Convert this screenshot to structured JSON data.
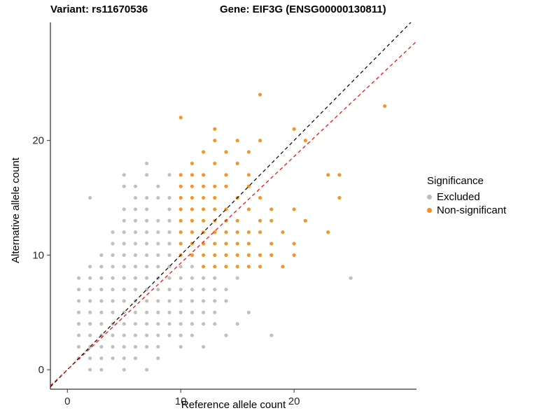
{
  "chart_data": {
    "type": "scatter",
    "title_left": "Variant: rs11670536",
    "title_right": "Gene: EIF3G (ENSG00000130811)",
    "xlabel": "Reference allele count",
    "ylabel": "Alternative allele count",
    "xlim": [
      -1.5,
      30.8
    ],
    "ylim": [
      -1.7,
      30.3
    ],
    "x_ticks": [
      0,
      10,
      20
    ],
    "y_ticks": [
      0,
      10,
      20
    ],
    "grid": false,
    "legend": {
      "title": "Significance",
      "position": "right",
      "items": [
        {
          "label": "Excluded",
          "color": "#bdbdbd"
        },
        {
          "label": "Non-significant",
          "color": "#f39019"
        }
      ]
    },
    "lines": [
      {
        "name": "identity-line",
        "slope": 1,
        "intercept": 0,
        "color": "#000000",
        "dash": "5,4"
      },
      {
        "name": "fit-line",
        "slope": 0.93,
        "intercept": 0,
        "color": "#ff0000",
        "dash": "5,4"
      }
    ],
    "series": [
      {
        "name": "Excluded",
        "color": "#bdbdbd",
        "points": [
          [
            2,
            0
          ],
          [
            3,
            0
          ],
          [
            5,
            0
          ],
          [
            7,
            0
          ],
          [
            1,
            1
          ],
          [
            2,
            1
          ],
          [
            3,
            1
          ],
          [
            4,
            1
          ],
          [
            5,
            1
          ],
          [
            6,
            1
          ],
          [
            8,
            1
          ],
          [
            1,
            2
          ],
          [
            2,
            2
          ],
          [
            3,
            2
          ],
          [
            4,
            2
          ],
          [
            5,
            2
          ],
          [
            6,
            2
          ],
          [
            7,
            2
          ],
          [
            8,
            2
          ],
          [
            10,
            2
          ],
          [
            12,
            2
          ],
          [
            1,
            3
          ],
          [
            2,
            3
          ],
          [
            3,
            3
          ],
          [
            4,
            3
          ],
          [
            5,
            3
          ],
          [
            6,
            3
          ],
          [
            7,
            3
          ],
          [
            8,
            3
          ],
          [
            9,
            3
          ],
          [
            10,
            3
          ],
          [
            11,
            3
          ],
          [
            14,
            3
          ],
          [
            18,
            3
          ],
          [
            1,
            4
          ],
          [
            2,
            4
          ],
          [
            3,
            4
          ],
          [
            4,
            4
          ],
          [
            5,
            4
          ],
          [
            6,
            4
          ],
          [
            7,
            4
          ],
          [
            8,
            4
          ],
          [
            9,
            4
          ],
          [
            10,
            4
          ],
          [
            11,
            4
          ],
          [
            12,
            4
          ],
          [
            13,
            4
          ],
          [
            15,
            4
          ],
          [
            1,
            5
          ],
          [
            2,
            5
          ],
          [
            3,
            5
          ],
          [
            4,
            5
          ],
          [
            5,
            5
          ],
          [
            6,
            5
          ],
          [
            7,
            5
          ],
          [
            8,
            5
          ],
          [
            9,
            5
          ],
          [
            10,
            5
          ],
          [
            11,
            5
          ],
          [
            12,
            5
          ],
          [
            13,
            5
          ],
          [
            16,
            5
          ],
          [
            1,
            6
          ],
          [
            2,
            6
          ],
          [
            3,
            6
          ],
          [
            4,
            6
          ],
          [
            5,
            6
          ],
          [
            6,
            6
          ],
          [
            7,
            6
          ],
          [
            8,
            6
          ],
          [
            9,
            6
          ],
          [
            10,
            6
          ],
          [
            11,
            6
          ],
          [
            12,
            6
          ],
          [
            13,
            6
          ],
          [
            14,
            6
          ],
          [
            1,
            7
          ],
          [
            2,
            7
          ],
          [
            3,
            7
          ],
          [
            4,
            7
          ],
          [
            5,
            7
          ],
          [
            6,
            7
          ],
          [
            7,
            7
          ],
          [
            8,
            7
          ],
          [
            9,
            7
          ],
          [
            10,
            7
          ],
          [
            11,
            7
          ],
          [
            12,
            7
          ],
          [
            13,
            7
          ],
          [
            14,
            7
          ],
          [
            1,
            8
          ],
          [
            2,
            8
          ],
          [
            3,
            8
          ],
          [
            4,
            8
          ],
          [
            5,
            8
          ],
          [
            6,
            8
          ],
          [
            7,
            8
          ],
          [
            8,
            8
          ],
          [
            9,
            8
          ],
          [
            10,
            8
          ],
          [
            11,
            8
          ],
          [
            12,
            8
          ],
          [
            13,
            8
          ],
          [
            15,
            8
          ],
          [
            25,
            8
          ],
          [
            2,
            9
          ],
          [
            3,
            9
          ],
          [
            4,
            9
          ],
          [
            5,
            9
          ],
          [
            6,
            9
          ],
          [
            7,
            9
          ],
          [
            8,
            9
          ],
          [
            9,
            9
          ],
          [
            10,
            9
          ],
          [
            11,
            9
          ],
          [
            3,
            10
          ],
          [
            4,
            10
          ],
          [
            5,
            10
          ],
          [
            6,
            10
          ],
          [
            7,
            10
          ],
          [
            8,
            10
          ],
          [
            9,
            10
          ],
          [
            4,
            11
          ],
          [
            5,
            11
          ],
          [
            6,
            11
          ],
          [
            7,
            11
          ],
          [
            8,
            11
          ],
          [
            9,
            11
          ],
          [
            4,
            12
          ],
          [
            5,
            12
          ],
          [
            6,
            12
          ],
          [
            7,
            12
          ],
          [
            8,
            12
          ],
          [
            9,
            12
          ],
          [
            5,
            13
          ],
          [
            6,
            13
          ],
          [
            7,
            13
          ],
          [
            8,
            13
          ],
          [
            9,
            13
          ],
          [
            5,
            14
          ],
          [
            6,
            14
          ],
          [
            7,
            14
          ],
          [
            9,
            14
          ],
          [
            2,
            15
          ],
          [
            6,
            15
          ],
          [
            7,
            15
          ],
          [
            8,
            15
          ],
          [
            9,
            15
          ],
          [
            5,
            16
          ],
          [
            6,
            16
          ],
          [
            8,
            16
          ],
          [
            5,
            17
          ],
          [
            7,
            17
          ],
          [
            9,
            17
          ],
          [
            7,
            18
          ]
        ]
      },
      {
        "name": "Non-significant",
        "color": "#f39019",
        "points": [
          [
            12,
            9
          ],
          [
            13,
            9
          ],
          [
            14,
            9
          ],
          [
            15,
            9
          ],
          [
            16,
            9
          ],
          [
            17,
            9
          ],
          [
            19,
            9
          ],
          [
            10,
            10
          ],
          [
            11,
            10
          ],
          [
            12,
            10
          ],
          [
            13,
            10
          ],
          [
            14,
            10
          ],
          [
            15,
            10
          ],
          [
            16,
            10
          ],
          [
            17,
            10
          ],
          [
            18,
            10
          ],
          [
            20,
            10
          ],
          [
            10,
            11
          ],
          [
            11,
            11
          ],
          [
            12,
            11
          ],
          [
            13,
            11
          ],
          [
            14,
            11
          ],
          [
            15,
            11
          ],
          [
            16,
            11
          ],
          [
            18,
            11
          ],
          [
            20,
            11
          ],
          [
            10,
            12
          ],
          [
            11,
            12
          ],
          [
            12,
            12
          ],
          [
            13,
            12
          ],
          [
            14,
            12
          ],
          [
            15,
            12
          ],
          [
            16,
            12
          ],
          [
            17,
            12
          ],
          [
            19,
            12
          ],
          [
            23,
            12
          ],
          [
            10,
            13
          ],
          [
            11,
            13
          ],
          [
            12,
            13
          ],
          [
            13,
            13
          ],
          [
            14,
            13
          ],
          [
            15,
            13
          ],
          [
            17,
            13
          ],
          [
            18,
            13
          ],
          [
            21,
            13
          ],
          [
            10,
            14
          ],
          [
            11,
            14
          ],
          [
            12,
            14
          ],
          [
            13,
            14
          ],
          [
            14,
            14
          ],
          [
            16,
            14
          ],
          [
            18,
            14
          ],
          [
            20,
            14
          ],
          [
            10,
            15
          ],
          [
            11,
            15
          ],
          [
            12,
            15
          ],
          [
            13,
            15
          ],
          [
            15,
            15
          ],
          [
            17,
            15
          ],
          [
            24,
            15
          ],
          [
            10,
            16
          ],
          [
            11,
            16
          ],
          [
            12,
            16
          ],
          [
            13,
            16
          ],
          [
            14,
            16
          ],
          [
            16,
            16
          ],
          [
            10,
            17
          ],
          [
            11,
            17
          ],
          [
            12,
            17
          ],
          [
            14,
            17
          ],
          [
            16,
            17
          ],
          [
            23,
            17
          ],
          [
            24,
            17
          ],
          [
            11,
            18
          ],
          [
            13,
            18
          ],
          [
            15,
            18
          ],
          [
            12,
            19
          ],
          [
            14,
            19
          ],
          [
            16,
            19
          ],
          [
            13,
            20
          ],
          [
            15,
            20
          ],
          [
            17,
            20
          ],
          [
            21,
            20
          ],
          [
            13,
            21
          ],
          [
            20,
            21
          ],
          [
            10,
            22
          ],
          [
            28,
            23
          ],
          [
            17,
            24
          ]
        ]
      }
    ]
  }
}
